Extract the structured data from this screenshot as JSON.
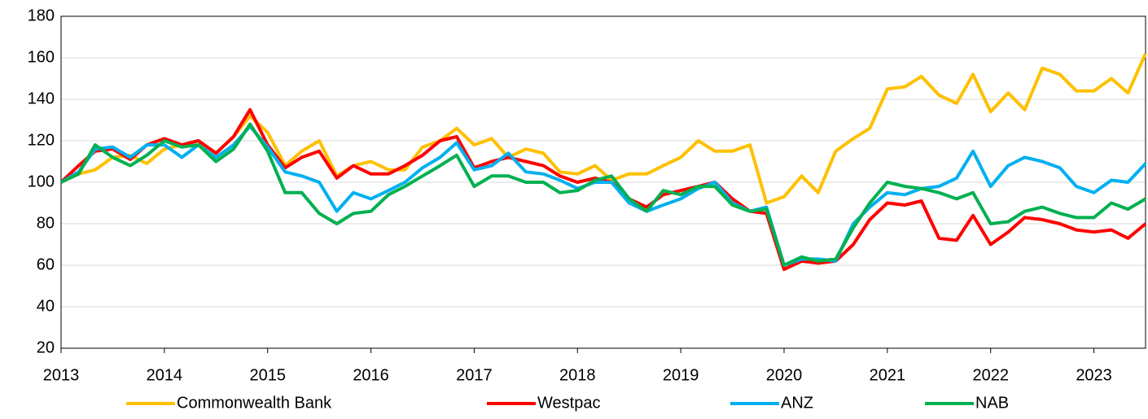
{
  "chart_data": {
    "type": "line",
    "x": [
      2013,
      2013.17,
      2013.33,
      2013.5,
      2013.67,
      2013.83,
      2014,
      2014.17,
      2014.33,
      2014.5,
      2014.67,
      2014.83,
      2015,
      2015.17,
      2015.33,
      2015.5,
      2015.67,
      2015.83,
      2016,
      2016.17,
      2016.33,
      2016.5,
      2016.67,
      2016.83,
      2017,
      2017.17,
      2017.33,
      2017.5,
      2017.67,
      2017.83,
      2018,
      2018.17,
      2018.33,
      2018.5,
      2018.67,
      2018.83,
      2019,
      2019.17,
      2019.33,
      2019.5,
      2019.67,
      2019.83,
      2020,
      2020.17,
      2020.33,
      2020.5,
      2020.67,
      2020.83,
      2021,
      2021.17,
      2021.33,
      2021.5,
      2021.67,
      2021.83,
      2022,
      2022.17,
      2022.33,
      2022.5,
      2022.67,
      2022.83,
      2023,
      2023.17,
      2023.33,
      2023.5
    ],
    "series": [
      {
        "name": "Commonwealth Bank",
        "color": "#ffc000",
        "values": [
          100,
          104,
          106,
          112,
          113,
          109,
          116,
          118,
          120,
          114,
          122,
          132,
          124,
          108,
          115,
          120,
          103,
          108,
          110,
          106,
          106,
          117,
          120,
          126,
          118,
          121,
          112,
          116,
          114,
          105,
          104,
          108,
          101,
          104,
          104,
          108,
          112,
          120,
          115,
          115,
          118,
          90,
          93,
          103,
          95,
          115,
          121,
          126,
          145,
          146,
          151,
          142,
          138,
          152,
          134,
          143,
          135,
          155,
          152,
          144,
          144,
          150,
          143,
          162
        ]
      },
      {
        "name": "Westpac",
        "color": "#ff0000",
        "values": [
          100,
          108,
          115,
          116,
          111,
          118,
          121,
          118,
          120,
          114,
          122,
          135,
          118,
          107,
          112,
          115,
          102,
          108,
          104,
          104,
          108,
          113,
          120,
          122,
          107,
          110,
          112,
          110,
          108,
          103,
          100,
          102,
          100,
          92,
          88,
          94,
          96,
          98,
          100,
          92,
          86,
          85,
          58,
          62,
          61,
          62,
          70,
          82,
          90,
          89,
          91,
          73,
          72,
          84,
          70,
          76,
          83,
          82,
          80,
          77,
          76,
          77,
          73,
          80
        ]
      },
      {
        "name": "ANZ",
        "color": "#00b0f0",
        "values": [
          100,
          105,
          116,
          117,
          112,
          118,
          118,
          112,
          118,
          112,
          118,
          127,
          117,
          105,
          103,
          100,
          86,
          95,
          92,
          96,
          100,
          107,
          112,
          119,
          106,
          108,
          114,
          105,
          104,
          101,
          97,
          100,
          100,
          90,
          86,
          89,
          92,
          97,
          100,
          90,
          86,
          88,
          60,
          63,
          63,
          62,
          80,
          88,
          95,
          94,
          97,
          98,
          102,
          115,
          98,
          108,
          112,
          110,
          107,
          98,
          95,
          101,
          100,
          109
        ]
      },
      {
        "name": "NAB",
        "color": "#00b050",
        "values": [
          100,
          104,
          118,
          112,
          108,
          113,
          120,
          117,
          118,
          110,
          116,
          128,
          115,
          95,
          95,
          85,
          80,
          85,
          86,
          94,
          98,
          103,
          108,
          113,
          98,
          103,
          103,
          100,
          100,
          95,
          96,
          101,
          103,
          92,
          86,
          96,
          94,
          98,
          98,
          89,
          86,
          87,
          60,
          64,
          62,
          63,
          78,
          90,
          100,
          98,
          97,
          95,
          92,
          95,
          80,
          81,
          86,
          88,
          85,
          83,
          83,
          90,
          87,
          92
        ]
      }
    ],
    "xlim": [
      2013,
      2023.5
    ],
    "xticks": [
      2013,
      2014,
      2015,
      2016,
      2017,
      2018,
      2019,
      2020,
      2021,
      2022,
      2023
    ],
    "ylim": [
      20,
      180
    ],
    "yticks": [
      20,
      40,
      60,
      80,
      100,
      120,
      140,
      160,
      180
    ],
    "grid": true,
    "legend": "bottom"
  }
}
